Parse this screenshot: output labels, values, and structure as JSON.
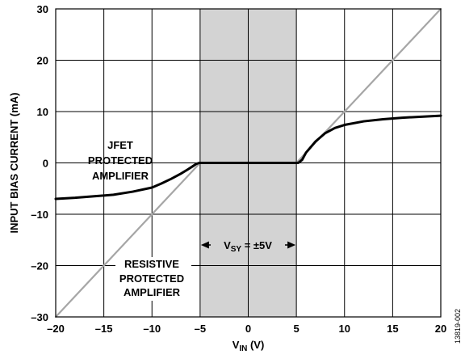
{
  "chart_data": {
    "type": "line",
    "title": "",
    "xlabel": "V",
    "xlabel_sub": "IN",
    "xlabel_unit": " (V)",
    "ylabel": "INPUT BIAS CURRENT (mA)",
    "xlim": [
      -20,
      20
    ],
    "ylim": [
      -30,
      30
    ],
    "x_ticks": [
      -20,
      -15,
      -10,
      -5,
      0,
      5,
      10,
      15,
      20
    ],
    "y_ticks": [
      -30,
      -20,
      -10,
      0,
      10,
      20,
      30
    ],
    "x_tick_labels": [
      "–20",
      "–15",
      "–10",
      "–5",
      "0",
      "5",
      "10",
      "15",
      "20"
    ],
    "y_tick_labels": [
      "–30",
      "–20",
      "–10",
      "0",
      "10",
      "20",
      "30"
    ],
    "grid": true,
    "shaded_region": {
      "x": [
        -5,
        5
      ],
      "color": "#d3d3d3"
    },
    "series": [
      {
        "name": "JFET PROTECTED AMPLIFIER",
        "color": "#000000",
        "x": [
          -20,
          -18,
          -16,
          -14,
          -12,
          -10,
          -9,
          -8,
          -7,
          -6.3,
          -5.8,
          -5.4,
          -5.1,
          -5,
          0,
          5.2,
          5.4,
          5.6,
          6,
          7,
          8,
          9,
          10,
          12,
          14,
          16,
          18,
          20
        ],
        "y": [
          -7.0,
          -6.8,
          -6.5,
          -6.2,
          -5.6,
          -4.8,
          -4.0,
          -3.1,
          -2.1,
          -1.3,
          -0.7,
          -0.2,
          0.0,
          0.0,
          0.0,
          0.0,
          0.3,
          0.6,
          2.0,
          4.2,
          5.8,
          6.8,
          7.4,
          8.1,
          8.5,
          8.8,
          9.0,
          9.2
        ]
      },
      {
        "name": "RESISTIVE PROTECTED AMPLIFIER",
        "color": "#a6a6a6",
        "x": [
          -20,
          -5,
          5,
          20
        ],
        "y": [
          -30,
          0,
          0,
          30
        ]
      }
    ],
    "annotations": {
      "jfet_lines": [
        "JFET",
        "PROTECTED",
        "AMPLIFIER"
      ],
      "resistive_lines": [
        "RESISTIVE",
        "PROTECTED",
        "AMPLIFIER"
      ],
      "supply_pre": "V",
      "supply_sub": "SY",
      "supply_post": " = ±5V"
    }
  },
  "figure_id": "13819-002"
}
